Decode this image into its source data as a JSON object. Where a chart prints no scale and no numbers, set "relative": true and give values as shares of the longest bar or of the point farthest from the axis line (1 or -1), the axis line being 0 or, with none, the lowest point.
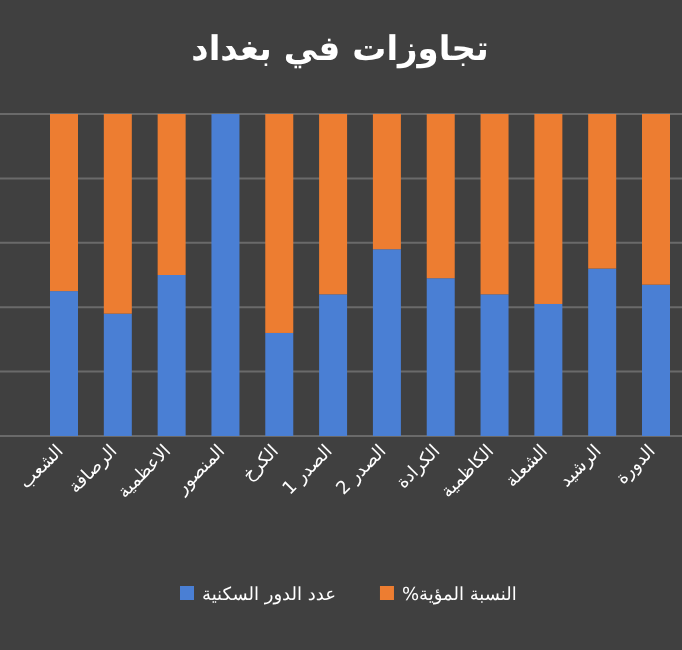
{
  "chart_data": {
    "type": "bar",
    "title": "تجاوزات  في بغداد",
    "stacked": true,
    "relative": true,
    "grid": "y",
    "legend": "bottom",
    "categories": [
      "الشعب",
      "الرصافة",
      "الاعظمية",
      "المنصور",
      "الكرخ",
      "الصدر 1",
      "الصدر 2",
      "الكرادة",
      "الكاظمية",
      "الشعلة",
      "الرشيد",
      "الدورة"
    ],
    "series": [
      {
        "name": "عدد الدور السكنية",
        "color": "#4a7fd4",
        "values": [
          0.45,
          0.38,
          0.5,
          1.0,
          0.32,
          0.44,
          0.58,
          0.49,
          0.44,
          0.41,
          0.52,
          0.47
        ]
      },
      {
        "name": "النسبة المؤية%",
        "color": "#ed7d31",
        "values": [
          0.55,
          0.62,
          0.5,
          0.0,
          0.68,
          0.56,
          0.42,
          0.51,
          0.56,
          0.59,
          0.48,
          0.53
        ]
      }
    ]
  }
}
